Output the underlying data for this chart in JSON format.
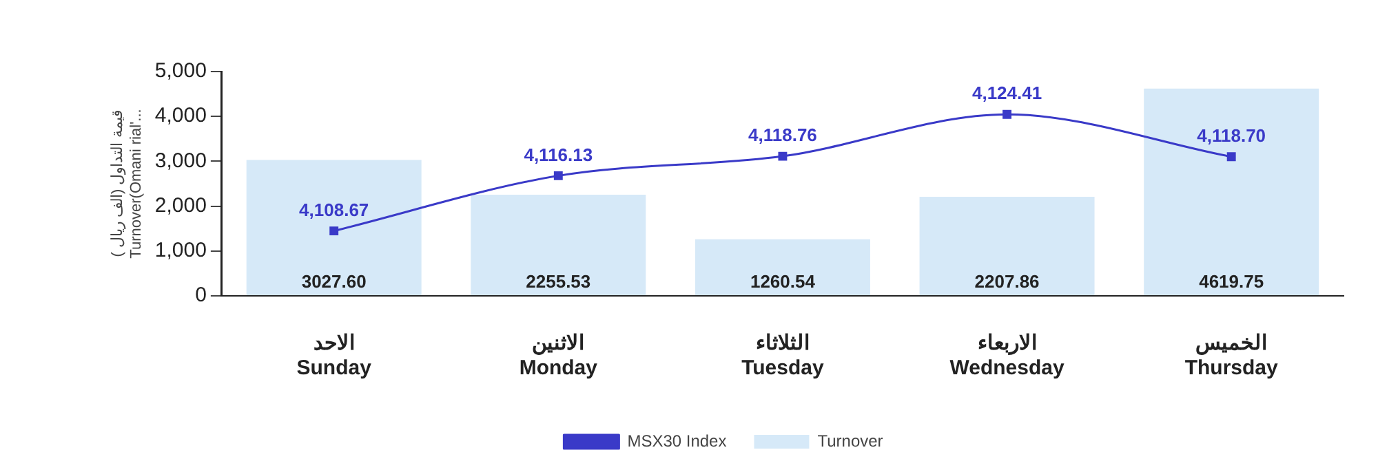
{
  "chart_data": {
    "type": "bar",
    "ylabel": "( قيمة التداول (الف ريال\nTurnover(Omani rial'...",
    "categories": [
      "الاحد\nSunday",
      "الاثنين\nMonday",
      "الثلاثاء\nTuesday",
      "الاربعاء\nWednesday",
      "الخميس\nThursday"
    ],
    "series": [
      {
        "name": "MSX30 Index",
        "type": "line",
        "axis": "y2",
        "color": "#3a3ac8",
        "values": [
          4108.67,
          4116.13,
          4118.76,
          4124.41,
          4118.7
        ],
        "value_labels": [
          "4,108.67",
          "4,116.13",
          "4,118.76",
          "4,124.41",
          "4,118.70"
        ]
      },
      {
        "name": "Turnover",
        "color": "#d6e9f8",
        "values": [
          3027.6,
          2255.53,
          1260.54,
          2207.86,
          4619.75
        ],
        "value_labels": [
          "3027.60",
          "2255.53",
          "1260.54",
          "2207.86",
          "4619.75"
        ]
      }
    ],
    "ylim": [
      0,
      5000
    ],
    "yticks": [
      {
        "value": 0,
        "label": "0"
      },
      {
        "value": 1000,
        "label": "1,000"
      },
      {
        "value": 2000,
        "label": "2,000"
      },
      {
        "value": 3000,
        "label": "3,000"
      },
      {
        "value": 4000,
        "label": "4,000"
      },
      {
        "value": 5000,
        "label": "5,000"
      }
    ],
    "y2lim": [
      4099.9,
      4130.2
    ],
    "tick_labels": "xy",
    "grid": false,
    "legend": "bottom",
    "marker": "square",
    "line_style": "solid"
  }
}
